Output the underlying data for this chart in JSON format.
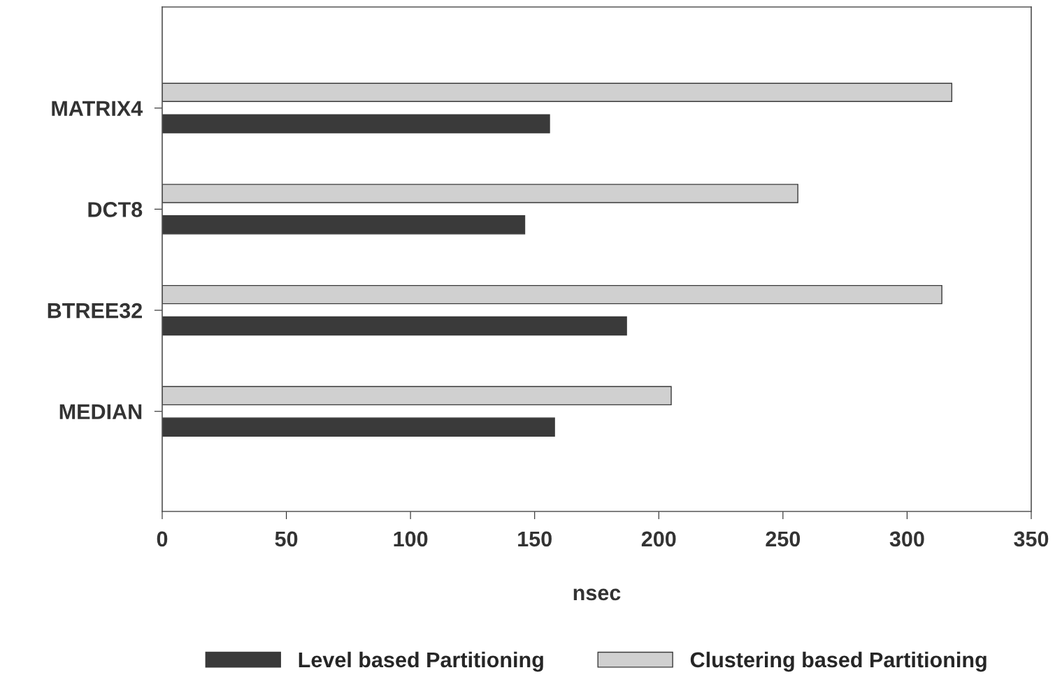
{
  "chart_data": {
    "type": "bar",
    "orientation": "horizontal",
    "xlabel": "nsec",
    "categories": [
      "MATRIX4",
      "DCT8",
      "BTREE32",
      "MEDIAN"
    ],
    "series": [
      {
        "name": "Level based Partitioning",
        "color": "#3a3a3a",
        "values": [
          156,
          146,
          187,
          158
        ]
      },
      {
        "name": "Clustering based Partitioning",
        "color": "#d0d0d0",
        "values": [
          318,
          256,
          314,
          205
        ]
      }
    ],
    "xlim": [
      0,
      350
    ],
    "xticks": [
      0,
      50,
      100,
      150,
      200,
      250,
      300,
      350
    ],
    "grid": false,
    "legend": "bottom"
  }
}
